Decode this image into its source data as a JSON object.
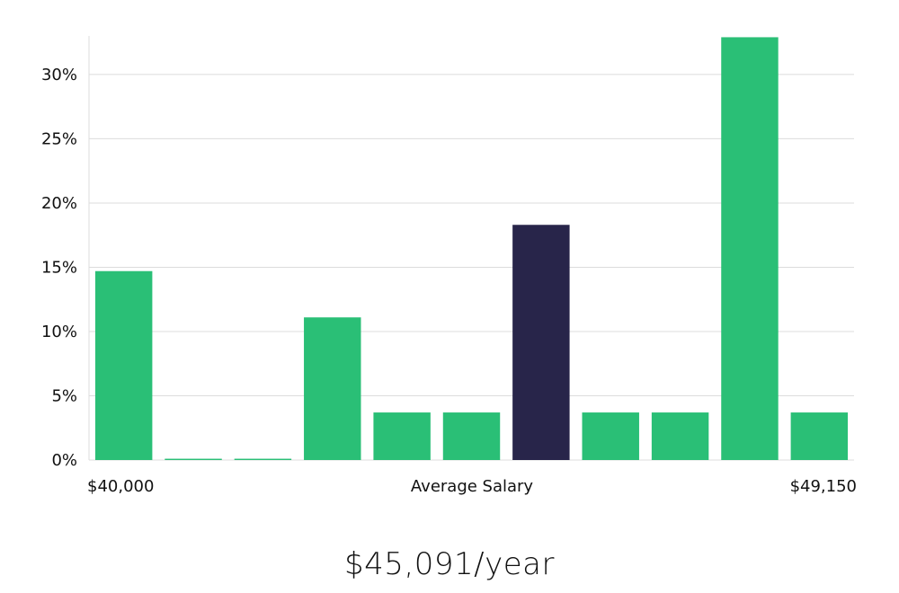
{
  "colors": {
    "bar": "#2abf76",
    "highlight": "#28254a",
    "grid": "#dcdcdc",
    "text": "#111111"
  },
  "headline": "$45,091/year",
  "chart_data": {
    "type": "bar",
    "categories": [
      "1",
      "2",
      "3",
      "4",
      "5",
      "6",
      "7",
      "8",
      "9",
      "10",
      "11"
    ],
    "values": [
      14.7,
      0.1,
      0.1,
      11.1,
      3.7,
      3.7,
      18.3,
      3.7,
      3.7,
      32.9,
      3.7
    ],
    "highlight_index": 6,
    "ylim": [
      0,
      33
    ],
    "yticks": [
      0,
      5,
      10,
      15,
      20,
      25,
      30
    ],
    "ytick_labels": [
      "0%",
      "5%",
      "10%",
      "15%",
      "20%",
      "25%",
      "30%"
    ],
    "x_start_label": "$40,000",
    "x_end_label": "$49,150",
    "xlabel": "Average Salary",
    "grid": true,
    "legend": "none"
  }
}
